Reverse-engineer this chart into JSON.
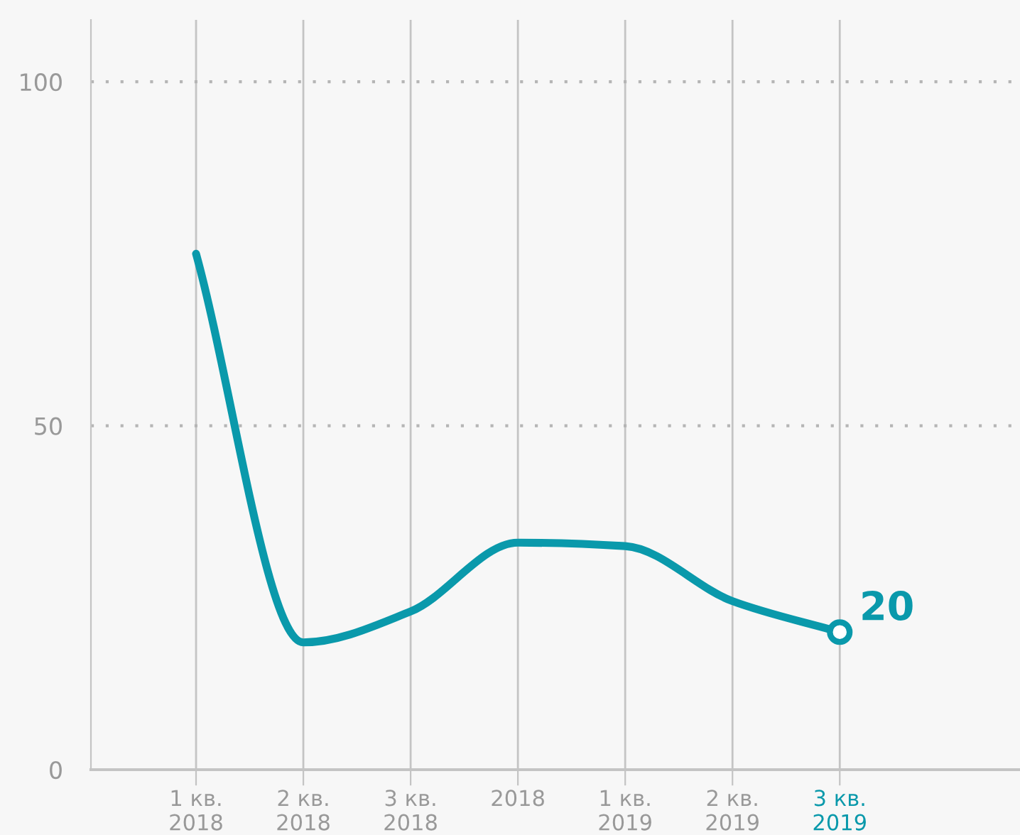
{
  "chart_data": {
    "type": "line",
    "categories": [
      "1 кв.\n2018",
      "2 кв.\n2018",
      "3 кв.\n2018",
      "2018",
      "1 кв.\n2019",
      "2 кв.\n2019",
      "3 кв.\n2019"
    ],
    "series": [
      {
        "color": "#0a99ab",
        "values": [
          75,
          18.5,
          23,
          33,
          32.5,
          24.5,
          20
        ],
        "value_labels": [
          null,
          null,
          null,
          null,
          null,
          null,
          "20"
        ]
      }
    ],
    "ylim": [
      0,
      109
    ],
    "yticks": [
      0,
      50,
      100
    ],
    "grid": true,
    "marker": "none",
    "line_style": "solid"
  }
}
